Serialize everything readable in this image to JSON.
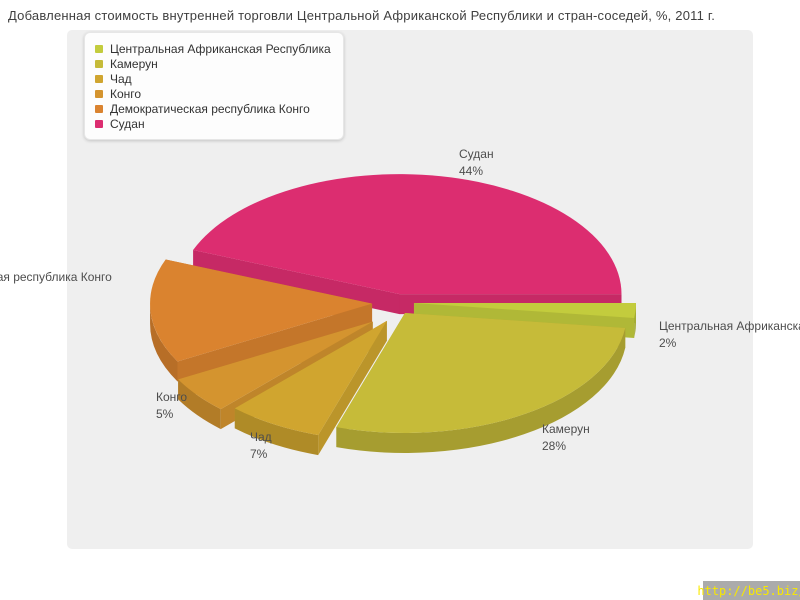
{
  "page": {
    "title": "Добавленная стоимость внутренней торговли Центральной Африканской Республики и стран-соседей, %, 2011 г."
  },
  "watermark": {
    "text": "http://be5.biz/",
    "background_color": "#ababab",
    "text_color": "#f8e800"
  },
  "chart_data": {
    "type": "pie",
    "style": "3d-exploded",
    "title": "Добавленная стоимость внутренней торговли Центральной Африканской Республики и стран-соседей, %, 2011 г.",
    "unit": "%",
    "legend_position": "top-left",
    "panel_color": "#efefef",
    "slices": [
      {
        "label": "Центральная Африканская Республика",
        "value": 2,
        "color": "#c3cc3d"
      },
      {
        "label": "Камерун",
        "value": 28,
        "color": "#c6bb39"
      },
      {
        "label": "Чад",
        "value": 7,
        "color": "#d0a52f"
      },
      {
        "label": "Конго",
        "value": 5,
        "color": "#d4942f"
      },
      {
        "label": "Демократическая республика Конго",
        "value": 14,
        "color": "#da832f"
      },
      {
        "label": "Судан",
        "value": 44,
        "color": "#dc2d70"
      }
    ]
  }
}
